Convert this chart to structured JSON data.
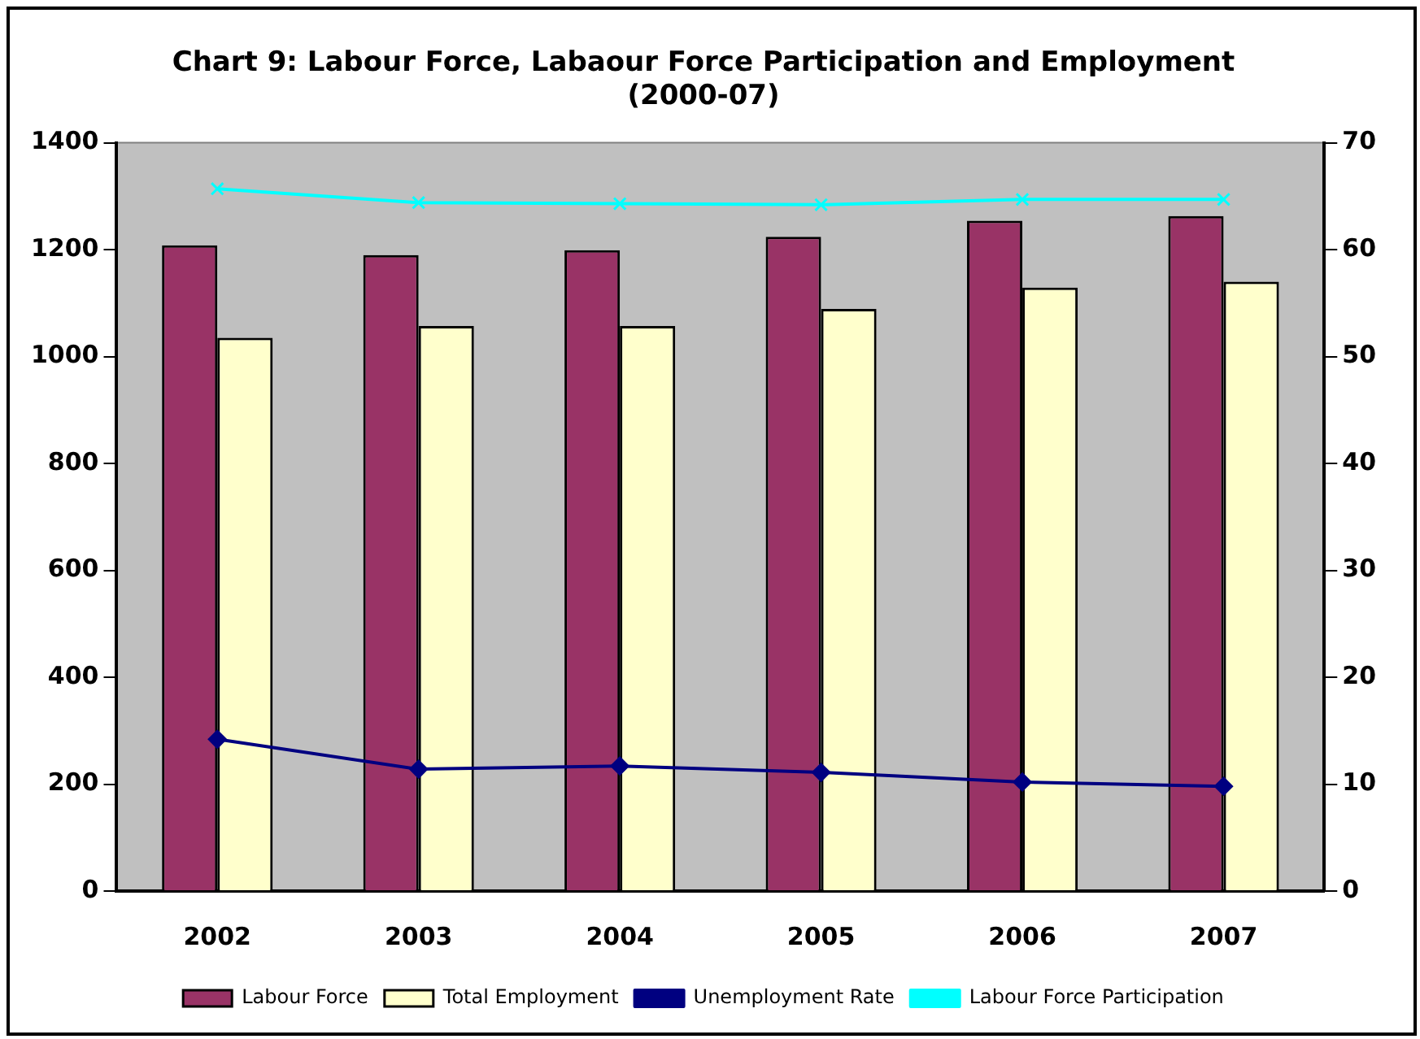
{
  "chart_data": {
    "type": "bar",
    "title": "Chart 9: Labour Force, Labaour Force Participation and Employment",
    "subtitle": "(2000-07)",
    "categories": [
      "2002",
      "2003",
      "2004",
      "2005",
      "2006",
      "2007"
    ],
    "series": [
      {
        "name": "Labour Force",
        "color": "#993366",
        "values": [
          1208,
          1190,
          1199,
          1224,
          1254,
          1263
        ]
      },
      {
        "name": "Total Employment",
        "color": "#ffffcc",
        "values": [
          1035,
          1057,
          1057,
          1089,
          1129,
          1140
        ]
      },
      {
        "name": "Unemployment Rate",
        "type": "line",
        "axis": "y2",
        "marker": "diamond",
        "color": "#000080",
        "values": [
          14.2,
          11.4,
          11.7,
          11.1,
          10.2,
          9.8
        ]
      },
      {
        "name": "Labour Force Participation",
        "type": "line",
        "axis": "y2",
        "marker": "cross",
        "color": "#00ffff",
        "values": [
          65.7,
          64.4,
          64.3,
          64.2,
          64.7,
          64.7
        ]
      }
    ],
    "ylim": [
      0,
      1400
    ],
    "yticks": [
      0,
      200,
      400,
      600,
      800,
      1000,
      1200,
      1400
    ],
    "y2lim": [
      0,
      70
    ],
    "y2ticks": [
      0,
      10,
      20,
      30,
      40,
      50,
      60,
      70
    ],
    "grid": false,
    "legend": "bottom"
  }
}
